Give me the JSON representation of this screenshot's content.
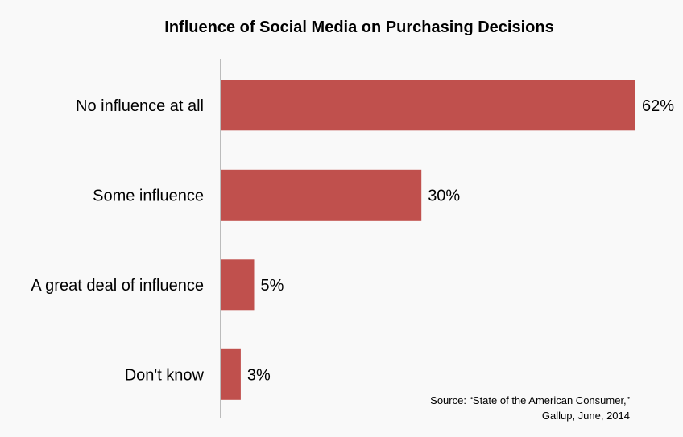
{
  "chart_data": {
    "type": "bar",
    "orientation": "horizontal",
    "title": "Influence of Social Media on Purchasing Decisions",
    "categories": [
      "No influence at all",
      "Some influence",
      "A great deal of influence",
      "Don't know"
    ],
    "values": [
      62,
      30,
      5,
      3
    ],
    "value_labels": [
      "62%",
      "30%",
      "5%",
      "3%"
    ],
    "xlim": [
      0,
      62
    ],
    "bar_color": "#c0504d",
    "axis_color": "#7f7f7f",
    "grid": false,
    "legend": "none"
  },
  "source": {
    "line1": "Source: “State of the American Consumer,”",
    "line2": "Gallup, June, 2014"
  }
}
